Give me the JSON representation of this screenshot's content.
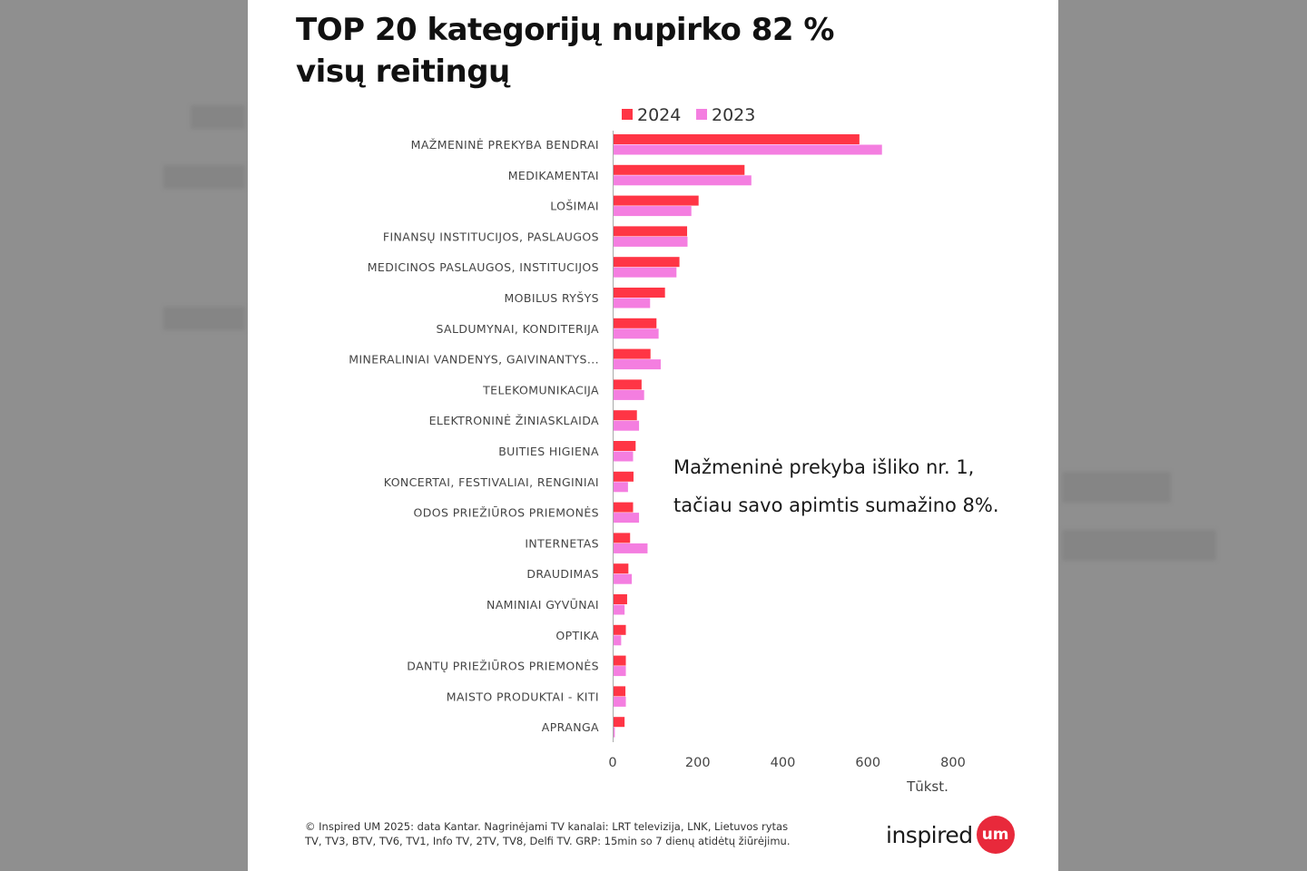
{
  "title": {
    "line1": "TOP 20 kategorijų nupirko 82 %",
    "line2": "visų reitingų"
  },
  "colors": {
    "series_2024": "#ff3545",
    "series_2023": "#f47ee0",
    "axis": "#aaaaaa",
    "label_text": "#444444",
    "logo_badge": "#e8293b"
  },
  "annotation": {
    "line1": "Mažmeninė prekyba išliko nr. 1,",
    "line2": "tačiau savo apimtis sumažino 8%."
  },
  "footer": {
    "line1": "© Inspired UM 2025: data Kantar.  Nagrinėjami TV kanalai: LRT televizija, LNK, Lietuvos rytas",
    "line2": "TV, TV3, BTV, TV6, TV1, Info TV, 2TV, TV8, Delfi TV. GRP: 15min so 7 dienų atidėtų žiūrėjimu."
  },
  "logo": {
    "text": "inspired",
    "badge": "um"
  },
  "chart_data": {
    "type": "bar",
    "orientation": "horizontal",
    "title": "TOP 20 kategorijų nupirko 82 % visų reitingų",
    "xlabel": "Tūkst.",
    "ylabel": "",
    "xlim": [
      0,
      800
    ],
    "xticks": [
      0,
      200,
      400,
      600,
      800
    ],
    "legend_position": "top",
    "categories": [
      "MAŽMENINĖ PREKYBA BENDRAI",
      "MEDIKAMENTAI",
      "LOŠIMAI",
      "FINANSŲ INSTITUCIJOS, PASLAUGOS",
      "MEDICINOS PASLAUGOS, INSTITUCIJOS",
      "MOBILUS RYŠYS",
      "SALDUMYNAI, KONDITERIJA",
      "MINERALINIAI VANDENYS, GAIVINANTYS...",
      "TELEKOMUNIKACIJA",
      "ELEKTRONINĖ ŽINIASKLAIDA",
      "BUITIES HIGIENA",
      "KONCERTAI, FESTIVALIAI, RENGINIAI",
      "ODOS PRIEŽIŪROS PRIEMONĖS",
      "INTERNETAS",
      "DRAUDIMAS",
      "NAMINIAI GYVŪNAI",
      "OPTIKA",
      "DANTŲ PRIEŽIŪROS PRIEMONĖS",
      "MAISTO PRODUKTAI - KITI",
      "APRANGA"
    ],
    "series": [
      {
        "name": "2024",
        "values": [
          580,
          310,
          202,
          175,
          157,
          123,
          103,
          89,
          68,
          57,
          54,
          49,
          48,
          41,
          37,
          34,
          31,
          31,
          30,
          28
        ]
      },
      {
        "name": "2023",
        "values": [
          633,
          326,
          185,
          176,
          150,
          88,
          108,
          113,
          74,
          62,
          48,
          36,
          62,
          82,
          45,
          28,
          20,
          31,
          31,
          5
        ]
      }
    ]
  }
}
